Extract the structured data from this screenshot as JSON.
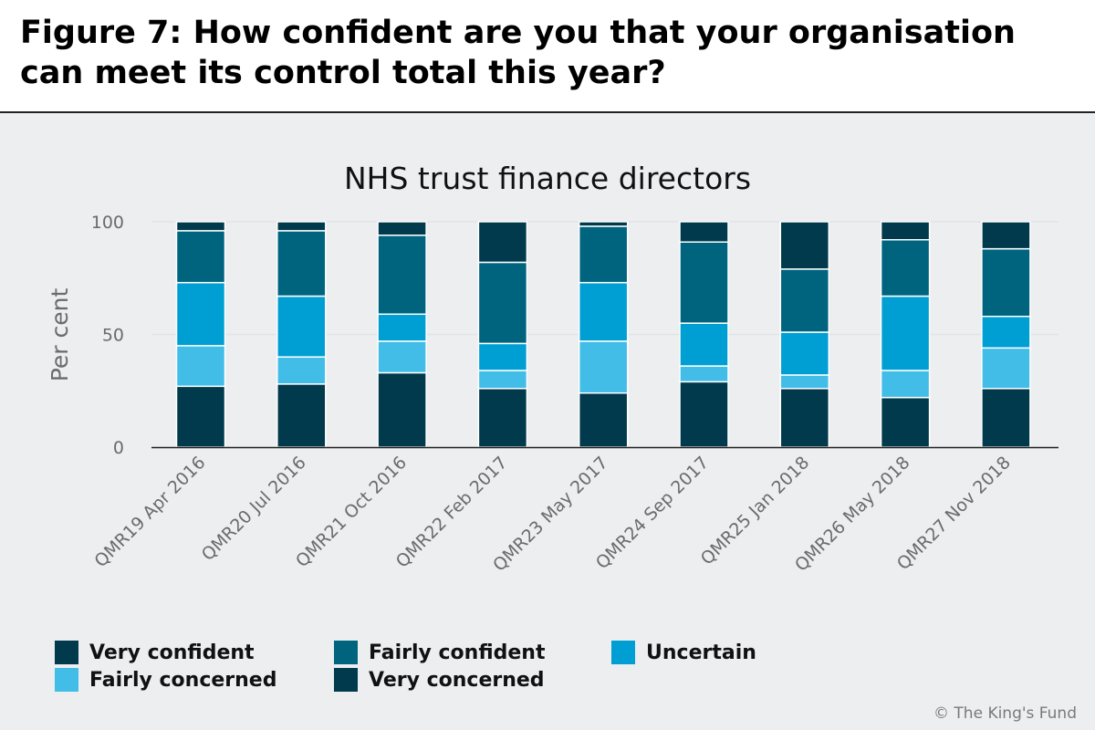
{
  "figure_title": "Figure 7: How confident are you that your organisation can meet its control total this year?",
  "credit": "© The King's Fund",
  "colors": {
    "very_confident": "#003a4c",
    "fairly_confident": "#00647f",
    "uncertain": "#009fd3",
    "fairly_concerned": "#42bde8",
    "very_concerned": "#003a4c",
    "panel_background": "#edeef0"
  },
  "chart_data": {
    "type": "bar",
    "stacked": true,
    "title": "NHS trust finance directors",
    "xlabel": "",
    "ylabel": "Per cent",
    "ylim": [
      0,
      100
    ],
    "yticks": [
      0,
      50,
      100
    ],
    "grid": true,
    "legend_position": "bottom",
    "categories": [
      "QMR19 Apr 2016",
      "QMR20 Jul 2016",
      "QMR21 Oct 2016",
      "QMR22 Feb 2017",
      "QMR23 May 2017",
      "QMR24 Sep 2017",
      "QMR25 Jan 2018",
      "QMR26 May 2018",
      "QMR27 Nov 2018"
    ],
    "series": [
      {
        "name": "Very confident",
        "color_key": "very_confident",
        "values": [
          27,
          28,
          33,
          26,
          24,
          29,
          26,
          22,
          26
        ]
      },
      {
        "name": "Fairly concerned",
        "color_key": "fairly_concerned",
        "values": [
          18,
          12,
          14,
          8,
          23,
          7,
          6,
          12,
          18
        ]
      },
      {
        "name": "Uncertain",
        "color_key": "uncertain",
        "values": [
          28,
          27,
          12,
          12,
          26,
          19,
          19,
          33,
          14
        ]
      },
      {
        "name": "Fairly confident",
        "color_key": "fairly_confident",
        "values": [
          23,
          29,
          35,
          36,
          25,
          36,
          28,
          25,
          30
        ]
      },
      {
        "name": "Very concerned",
        "color_key": "very_concerned",
        "values": [
          4,
          4,
          6,
          18,
          2,
          9,
          21,
          8,
          12
        ]
      }
    ],
    "legend_order": [
      "Very confident",
      "Fairly confident",
      "Uncertain",
      "Fairly concerned",
      "Very concerned"
    ]
  }
}
